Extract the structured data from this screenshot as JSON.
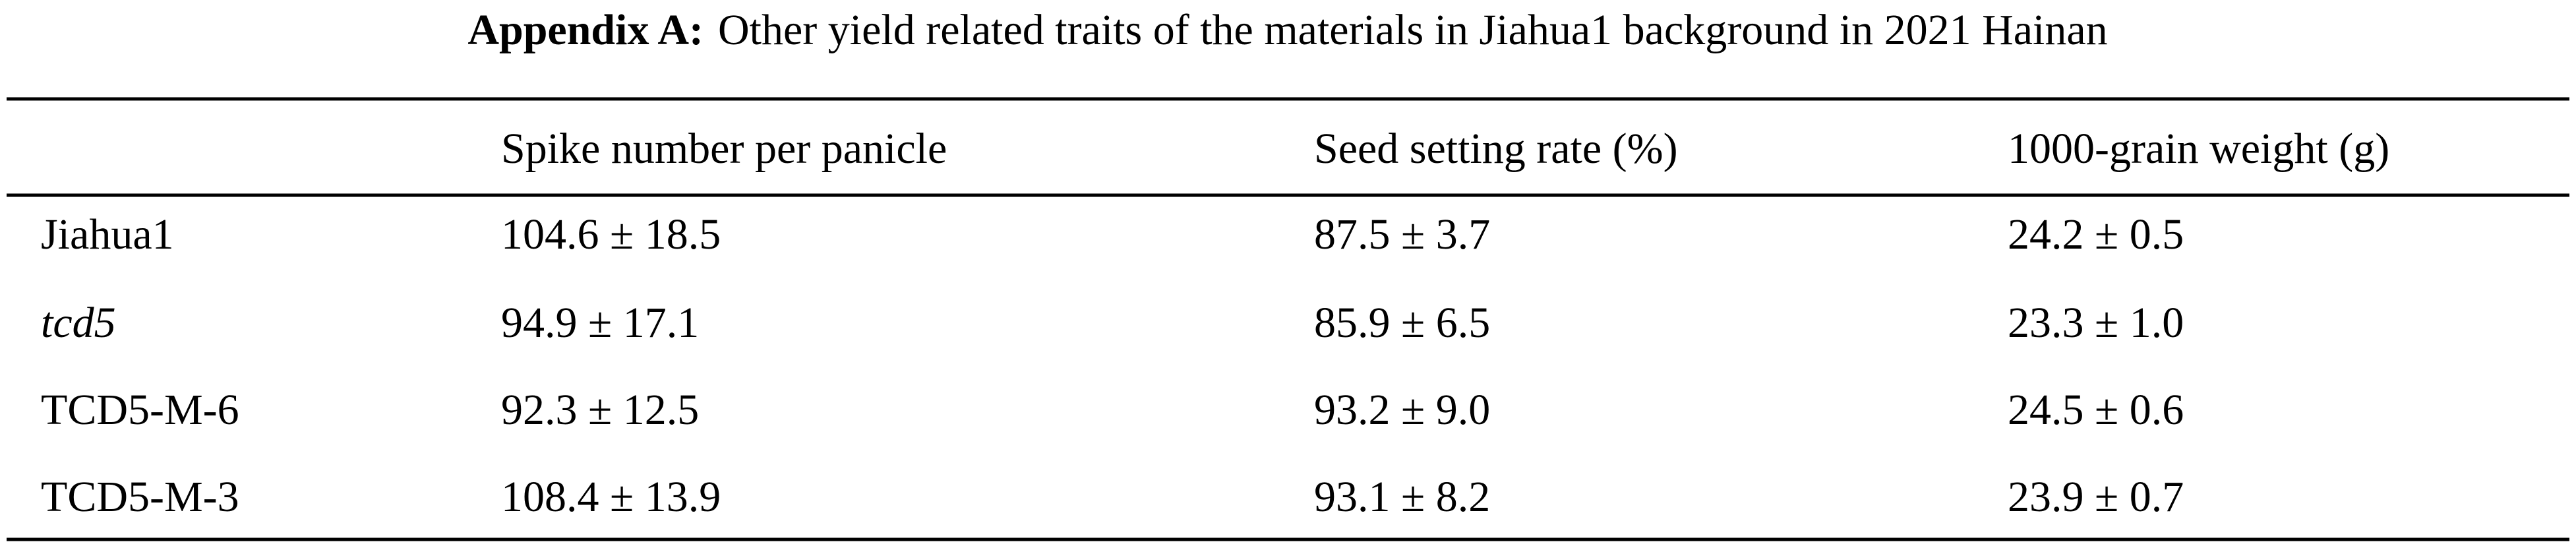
{
  "title": {
    "label": "Appendix A:",
    "text": "Other yield related traits of the materials in Jiahua1 background in 2021 Hainan"
  },
  "table": {
    "header": [
      "Spike number per panicle",
      "Seed setting rate (%)",
      "1000-grain weight (g)"
    ],
    "rows": [
      [
        "Jiahua1",
        "104.6 ± 18.5",
        "87.5 ± 3.7",
        "24.2 ± 0.5"
      ],
      [
        "tcd5",
        "94.9 ± 17.1",
        "85.9 ± 6.5",
        "23.3 ± 1.0"
      ],
      [
        "TCD5-M-6",
        "92.3 ± 12.5",
        "93.2 ± 9.0",
        "24.5 ± 0.6"
      ],
      [
        "TCD5-M-3",
        "108.4 ± 13.9",
        "93.1 ± 8.2",
        "23.9 ± 0.7"
      ]
    ]
  }
}
